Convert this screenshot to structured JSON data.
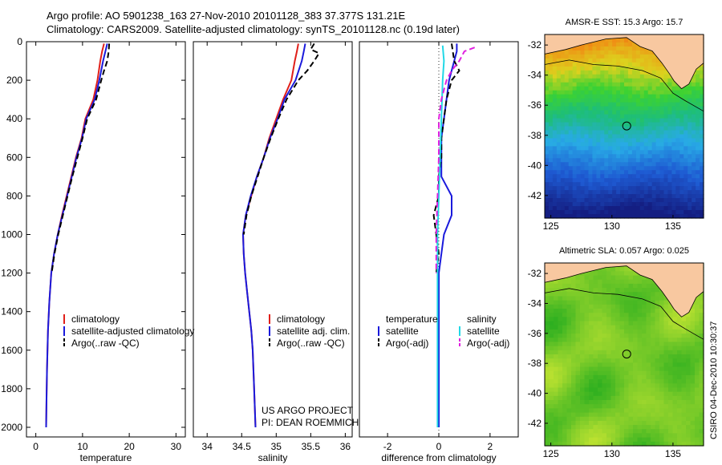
{
  "header": {
    "line1": "Argo profile: AO 5901238_163 27-Nov-2010 20101128_383 37.377S 131.21E",
    "line2": "Climatology: CARS2009. Satellite-adjusted climatology: synTS_20101128.nc (0.19d later)"
  },
  "side_note": "CSIRO 04-Dec-2010 10:30:37",
  "project_note": [
    "US ARGO PROJECT",
    "PI: DEAN ROEMMICH"
  ],
  "colors": {
    "climatology": "#e0201a",
    "satellite": "#1a1adc",
    "argo": "#000000",
    "sat_cyan": "#22d8e6",
    "argo_magenta": "#e020e0",
    "land": "#f8c8a0"
  },
  "chart_data": [
    {
      "type": "line",
      "id": "temperature",
      "xlabel": "temperature",
      "ylabel": "",
      "xlim": [
        -2,
        32
      ],
      "ylim": [
        2050,
        0
      ],
      "xticks": [
        0,
        10,
        20,
        30
      ],
      "yticks": [
        0,
        200,
        400,
        600,
        800,
        1000,
        1200,
        1400,
        1600,
        1800,
        2000
      ],
      "legend": [
        "climatology",
        "satellite-adjusted climatology",
        "Argo(..raw -QC)"
      ],
      "series": [
        {
          "name": "climatology",
          "color": "#e0201a",
          "points": [
            [
              14.6,
              10
            ],
            [
              14.2,
              50
            ],
            [
              13.8,
              100
            ],
            [
              13.2,
              200
            ],
            [
              12.3,
              300
            ],
            [
              10.6,
              400
            ],
            [
              9.8,
              500
            ],
            [
              8.6,
              600
            ],
            [
              7.6,
              700
            ],
            [
              6.6,
              800
            ],
            [
              5.6,
              900
            ],
            [
              4.7,
              1000
            ],
            [
              3.9,
              1100
            ],
            [
              3.3,
              1200
            ],
            [
              2.9,
              1350
            ],
            [
              2.6,
              1500
            ],
            [
              2.4,
              1700
            ],
            [
              2.3,
              1850
            ],
            [
              2.2,
              2000
            ]
          ]
        },
        {
          "name": "satellite-adjusted climatology",
          "color": "#1a1adc",
          "points": [
            [
              15.3,
              10
            ],
            [
              14.9,
              50
            ],
            [
              14.4,
              100
            ],
            [
              13.6,
              200
            ],
            [
              12.6,
              300
            ],
            [
              10.8,
              400
            ],
            [
              9.9,
              500
            ],
            [
              8.7,
              600
            ],
            [
              7.7,
              700
            ],
            [
              6.7,
              800
            ],
            [
              5.7,
              900
            ],
            [
              4.7,
              1000
            ],
            [
              3.9,
              1100
            ],
            [
              3.3,
              1200
            ],
            [
              2.9,
              1350
            ],
            [
              2.6,
              1500
            ],
            [
              2.4,
              1700
            ],
            [
              2.3,
              1850
            ],
            [
              2.2,
              2000
            ]
          ]
        },
        {
          "name": "Argo(..raw -QC)",
          "color": "#000000",
          "dash": true,
          "points": [
            [
              15.7,
              10
            ],
            [
              15.6,
              50
            ],
            [
              15.3,
              100
            ],
            [
              14.6,
              150
            ],
            [
              14.0,
              200
            ],
            [
              12.9,
              300
            ],
            [
              11.0,
              400
            ],
            [
              10.0,
              500
            ],
            [
              8.9,
              600
            ],
            [
              7.8,
              700
            ],
            [
              6.8,
              800
            ],
            [
              5.8,
              900
            ],
            [
              4.8,
              1000
            ],
            [
              4.0,
              1100
            ],
            [
              3.4,
              1200
            ]
          ]
        }
      ]
    },
    {
      "type": "line",
      "id": "salinity",
      "xlabel": "salinity",
      "ylabel": "",
      "xlim": [
        33.8,
        36.1
      ],
      "ylim": [
        2050,
        0
      ],
      "xticks": [
        34,
        34.5,
        35,
        35.5,
        36
      ],
      "xticklabels": [
        "34",
        "34.5",
        "35",
        "35.5",
        "36"
      ],
      "legend": [
        "climatology",
        "satellite adj. clim.",
        "Argo(..raw -QC)"
      ],
      "series": [
        {
          "name": "climatology",
          "color": "#e0201a",
          "points": [
            [
              35.32,
              10
            ],
            [
              35.3,
              50
            ],
            [
              35.27,
              100
            ],
            [
              35.22,
              200
            ],
            [
              35.1,
              300
            ],
            [
              35.0,
              400
            ],
            [
              34.9,
              500
            ],
            [
              34.82,
              600
            ],
            [
              34.72,
              700
            ],
            [
              34.64,
              800
            ],
            [
              34.56,
              900
            ],
            [
              34.52,
              1000
            ],
            [
              34.53,
              1100
            ],
            [
              34.55,
              1200
            ],
            [
              34.58,
              1300
            ],
            [
              34.61,
              1400
            ],
            [
              34.64,
              1500
            ],
            [
              34.66,
              1600
            ],
            [
              34.68,
              1800
            ],
            [
              34.7,
              2000
            ]
          ]
        },
        {
          "name": "satellite adj. clim.",
          "color": "#1a1adc",
          "points": [
            [
              35.42,
              10
            ],
            [
              35.4,
              50
            ],
            [
              35.37,
              100
            ],
            [
              35.28,
              200
            ],
            [
              35.12,
              300
            ],
            [
              35.02,
              400
            ],
            [
              34.91,
              500
            ],
            [
              34.82,
              600
            ],
            [
              34.72,
              700
            ],
            [
              34.63,
              800
            ],
            [
              34.56,
              900
            ],
            [
              34.52,
              1000
            ],
            [
              34.53,
              1100
            ],
            [
              34.55,
              1200
            ],
            [
              34.58,
              1300
            ],
            [
              34.61,
              1400
            ],
            [
              34.64,
              1500
            ],
            [
              34.66,
              1600
            ],
            [
              34.68,
              1800
            ],
            [
              34.7,
              2000
            ]
          ]
        },
        {
          "name": "Argo(..raw -QC)",
          "color": "#000000",
          "dash": true,
          "points": [
            [
              35.55,
              10
            ],
            [
              35.5,
              40
            ],
            [
              35.62,
              60
            ],
            [
              35.55,
              100
            ],
            [
              35.45,
              150
            ],
            [
              35.32,
              200
            ],
            [
              35.15,
              300
            ],
            [
              35.03,
              400
            ],
            [
              34.92,
              500
            ],
            [
              34.82,
              600
            ],
            [
              34.73,
              700
            ],
            [
              34.64,
              800
            ],
            [
              34.57,
              900
            ],
            [
              34.53,
              1000
            ]
          ]
        }
      ]
    },
    {
      "type": "line",
      "id": "difference",
      "xlabel": "difference from climatology",
      "ylabel": "",
      "xlim": [
        -3.1,
        3.1
      ],
      "ylim": [
        2050,
        0
      ],
      "xticks": [
        -2,
        0,
        2
      ],
      "legend_left": {
        "title": "temperature",
        "items": [
          "satellite",
          "Argo(-adj)"
        ]
      },
      "legend_right": {
        "title": "salinity",
        "items": [
          "satellite",
          "Argo(-adj)"
        ]
      },
      "series": [
        {
          "name": "temperature satellite",
          "color": "#1a1adc",
          "points": [
            [
              0.7,
              10
            ],
            [
              0.7,
              50
            ],
            [
              0.6,
              100
            ],
            [
              0.4,
              200
            ],
            [
              0.3,
              300
            ],
            [
              0.2,
              400
            ],
            [
              0.1,
              500
            ],
            [
              0.1,
              600
            ],
            [
              0.1,
              700
            ],
            [
              0.5,
              800
            ],
            [
              0.5,
              900
            ],
            [
              0.2,
              1000
            ],
            [
              0.0,
              1200
            ],
            [
              0.0,
              1600
            ],
            [
              0.0,
              2000
            ]
          ]
        },
        {
          "name": "temperature Argo(-adj)",
          "color": "#000000",
          "dash": true,
          "points": [
            [
              0.5,
              10
            ],
            [
              0.6,
              100
            ],
            [
              0.8,
              150
            ],
            [
              0.5,
              200
            ],
            [
              0.3,
              300
            ],
            [
              0.2,
              400
            ],
            [
              0.1,
              500
            ],
            [
              0.1,
              600
            ],
            [
              0.0,
              700
            ],
            [
              0.0,
              800
            ],
            [
              -0.2,
              900
            ],
            [
              -0.1,
              1000
            ],
            [
              0.0,
              1100
            ],
            [
              -0.1,
              1200
            ]
          ]
        },
        {
          "name": "salinity satellite",
          "color": "#22d8e6",
          "points": [
            [
              0.15,
              20
            ],
            [
              0.2,
              100
            ],
            [
              0.15,
              200
            ],
            [
              0.1,
              400
            ],
            [
              0.05,
              600
            ],
            [
              0.0,
              800
            ],
            [
              -0.05,
              1000
            ],
            [
              -0.05,
              1200
            ],
            [
              -0.05,
              1600
            ],
            [
              -0.05,
              2000
            ]
          ]
        },
        {
          "name": "salinity Argo(-adj)",
          "color": "#e020e0",
          "dash": true,
          "points": [
            [
              1.4,
              30
            ],
            [
              1.0,
              50
            ],
            [
              0.8,
              100
            ],
            [
              0.5,
              150
            ],
            [
              0.3,
              200
            ],
            [
              0.1,
              300
            ],
            [
              0.0,
              400
            ],
            [
              0.0,
              600
            ],
            [
              -0.05,
              800
            ],
            [
              -0.1,
              1000
            ],
            [
              -0.1,
              1200
            ]
          ]
        }
      ]
    },
    {
      "type": "heatmap",
      "id": "sst-map",
      "title": "AMSR-E SST: 15.3 Argo: 15.7",
      "xlim": [
        124.5,
        137.5
      ],
      "ylim": [
        -43.5,
        -31.3
      ],
      "xticks": [
        125,
        130,
        135
      ],
      "yticks": [
        -32,
        -34,
        -36,
        -38,
        -40,
        -42
      ],
      "marker": {
        "lon": 131.21,
        "lat": -37.377
      }
    },
    {
      "type": "heatmap",
      "id": "sla-map",
      "title": "Altimetric SLA: 0.057 Argo: 0.025",
      "xlim": [
        124.5,
        137.5
      ],
      "ylim": [
        -43.5,
        -31.3
      ],
      "xticks": [
        125,
        130,
        135
      ],
      "yticks": [
        -32,
        -34,
        -36,
        -38,
        -40,
        -42
      ],
      "marker": {
        "lon": 131.21,
        "lat": -37.377
      }
    }
  ]
}
